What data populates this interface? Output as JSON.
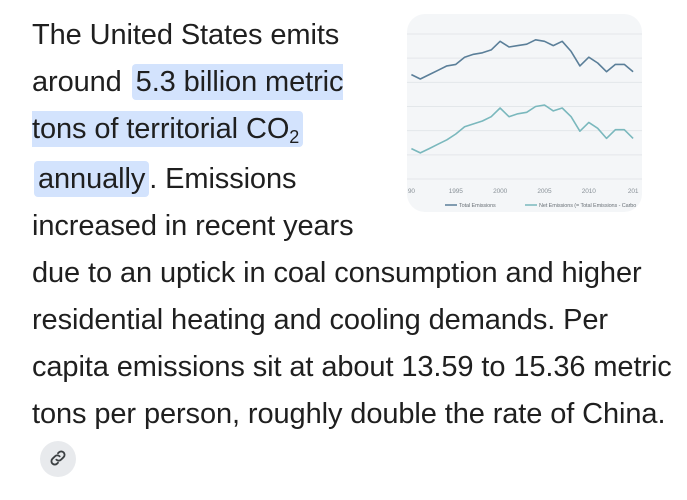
{
  "answer": {
    "intro": "The United States emits around",
    "highlight_main": "5.3 billion metric tons of territorial CO",
    "highlight_sub": "2",
    "highlight_tail": "annually",
    "rest": ". Emissions increased in recent years due to an uptick in coal consumption and higher residential heating and cooling demands. Per capita emissions sit at about 13.59 to 15.36 metric tons per person, roughly double the rate of China."
  },
  "link_icon": "link-icon",
  "colors": {
    "highlight": "#d3e3fd",
    "text": "#1f1f1f",
    "series_total": "#5b7f99",
    "series_net": "#7ab8bd"
  },
  "thumbnail": {
    "x_ticks": [
      "90",
      "1995",
      "2000",
      "2005",
      "2010",
      "201"
    ],
    "legend": [
      {
        "label": "Total Emissions",
        "color": "#5b7f99"
      },
      {
        "label": "Net Emissions (= Total Emissions - Carbo",
        "color": "#7ab8bd"
      }
    ]
  },
  "chart_data": {
    "type": "line",
    "x": [
      1990,
      1991,
      1992,
      1993,
      1994,
      1995,
      1996,
      1997,
      1998,
      1999,
      2000,
      2001,
      2002,
      2003,
      2004,
      2005,
      2006,
      2007,
      2008,
      2009,
      2010,
      2011,
      2012,
      2013,
      2014,
      2015
    ],
    "series": [
      {
        "name": "Total Emissions",
        "values": [
          0.72,
          0.69,
          0.72,
          0.75,
          0.78,
          0.79,
          0.84,
          0.86,
          0.87,
          0.89,
          0.95,
          0.91,
          0.92,
          0.93,
          0.96,
          0.95,
          0.92,
          0.95,
          0.88,
          0.78,
          0.84,
          0.8,
          0.74,
          0.79,
          0.79,
          0.74
        ]
      },
      {
        "name": "Net Emissions (= Total Emissions - Carbo",
        "values": [
          0.21,
          0.18,
          0.21,
          0.24,
          0.27,
          0.31,
          0.36,
          0.38,
          0.4,
          0.43,
          0.49,
          0.43,
          0.45,
          0.46,
          0.5,
          0.51,
          0.47,
          0.49,
          0.43,
          0.33,
          0.39,
          0.35,
          0.28,
          0.34,
          0.34,
          0.28
        ]
      }
    ],
    "xlim": [
      1989.5,
      2016
    ],
    "ylim": [
      0,
      1
    ]
  }
}
